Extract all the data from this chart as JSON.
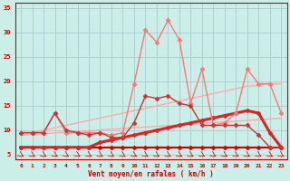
{
  "background_color": "#cceee8",
  "grid_color": "#aacccc",
  "x_label": "Vent moyen/en rafales ( km/h )",
  "xlim": [
    -0.5,
    23.5
  ],
  "ylim": [
    4,
    36
  ],
  "yticks": [
    5,
    10,
    15,
    20,
    25,
    30,
    35
  ],
  "xticks": [
    0,
    1,
    2,
    3,
    4,
    5,
    6,
    7,
    8,
    9,
    10,
    11,
    12,
    13,
    14,
    15,
    16,
    17,
    18,
    19,
    20,
    21,
    22,
    23
  ],
  "lines": [
    {
      "x": [
        0,
        1,
        2,
        3,
        4,
        5,
        6,
        7,
        8,
        9,
        10,
        11,
        12,
        13,
        14,
        15,
        16,
        17,
        18,
        19,
        20,
        21,
        22,
        23
      ],
      "y": [
        6.5,
        6.5,
        6.5,
        6.5,
        6.5,
        6.5,
        6.5,
        6.5,
        6.5,
        6.5,
        6.5,
        6.5,
        6.5,
        6.5,
        6.5,
        6.5,
        6.5,
        6.5,
        6.5,
        6.5,
        6.5,
        6.5,
        6.5,
        6.5
      ],
      "color": "#cc0000",
      "linewidth": 1.5,
      "marker": "P",
      "markersize": 3,
      "linestyle": "-"
    },
    {
      "x": [
        0,
        1,
        2,
        3,
        4,
        5,
        6,
        7,
        8,
        9,
        10,
        11,
        12,
        13,
        14,
        15,
        16,
        17,
        18,
        19,
        20,
        21,
        22,
        23
      ],
      "y": [
        9.0,
        9.15,
        9.3,
        9.45,
        9.6,
        9.75,
        9.9,
        10.05,
        10.2,
        10.35,
        10.5,
        10.65,
        10.8,
        10.95,
        11.1,
        11.25,
        11.4,
        11.55,
        11.7,
        11.85,
        12.0,
        12.15,
        12.3,
        12.45
      ],
      "color": "#ffaaaa",
      "linewidth": 1.0,
      "marker": null,
      "markersize": 0,
      "linestyle": "-"
    },
    {
      "x": [
        0,
        1,
        2,
        3,
        4,
        5,
        6,
        7,
        8,
        9,
        10,
        11,
        12,
        13,
        14,
        15,
        16,
        17,
        18,
        19,
        20,
        21,
        22,
        23
      ],
      "y": [
        9.0,
        9.5,
        10.0,
        10.5,
        11.0,
        11.5,
        12.0,
        12.5,
        13.0,
        13.5,
        14.0,
        14.5,
        15.0,
        15.5,
        16.0,
        16.5,
        17.0,
        17.5,
        18.0,
        18.5,
        19.0,
        19.2,
        19.5,
        19.5
      ],
      "color": "#ffaaaa",
      "linewidth": 1.0,
      "marker": null,
      "markersize": 0,
      "linestyle": "-"
    },
    {
      "x": [
        0,
        1,
        2,
        3,
        4,
        5,
        6,
        7,
        8,
        9,
        10,
        11,
        12,
        13,
        14,
        15,
        16,
        17,
        18,
        19,
        20,
        21,
        22,
        23
      ],
      "y": [
        6.5,
        6.5,
        6.5,
        6.5,
        6.5,
        6.5,
        6.5,
        7.5,
        8.0,
        8.5,
        9.0,
        9.5,
        10.0,
        10.5,
        11.0,
        11.5,
        12.0,
        12.5,
        13.0,
        13.5,
        14.0,
        13.5,
        9.5,
        6.5
      ],
      "color": "#dd2222",
      "linewidth": 2.2,
      "marker": "P",
      "markersize": 3,
      "linestyle": "-"
    },
    {
      "x": [
        0,
        1,
        2,
        3,
        4,
        5,
        6,
        7,
        8,
        9,
        10,
        11,
        12,
        13,
        14,
        15,
        16,
        17,
        18,
        19,
        20,
        21,
        22,
        23
      ],
      "y": [
        9.5,
        9.5,
        9.5,
        13.5,
        9.5,
        9.5,
        9.5,
        9.5,
        9.0,
        9.5,
        19.5,
        30.5,
        28.0,
        32.5,
        28.5,
        15.5,
        22.5,
        11.0,
        11.5,
        13.5,
        22.5,
        19.5,
        19.5,
        13.5
      ],
      "color": "#ff7777",
      "linewidth": 1.0,
      "marker": "D",
      "markersize": 2.5,
      "linestyle": "-"
    },
    {
      "x": [
        0,
        1,
        2,
        3,
        4,
        5,
        6,
        7,
        8,
        9,
        10,
        11,
        12,
        13,
        14,
        15,
        16,
        17,
        18,
        19,
        20,
        21,
        22,
        23
      ],
      "y": [
        9.5,
        9.5,
        9.5,
        13.5,
        10.0,
        9.5,
        9.0,
        9.5,
        8.5,
        8.5,
        11.5,
        17.0,
        16.5,
        17.0,
        15.5,
        15.0,
        11.0,
        11.0,
        11.0,
        11.0,
        11.0,
        9.0,
        6.5,
        6.5
      ],
      "color": "#cc3333",
      "linewidth": 1.0,
      "marker": "D",
      "markersize": 2.5,
      "linestyle": "-"
    }
  ],
  "tick_color": "#cc0000",
  "label_color": "#cc0000",
  "spine_color": "#cc0000"
}
